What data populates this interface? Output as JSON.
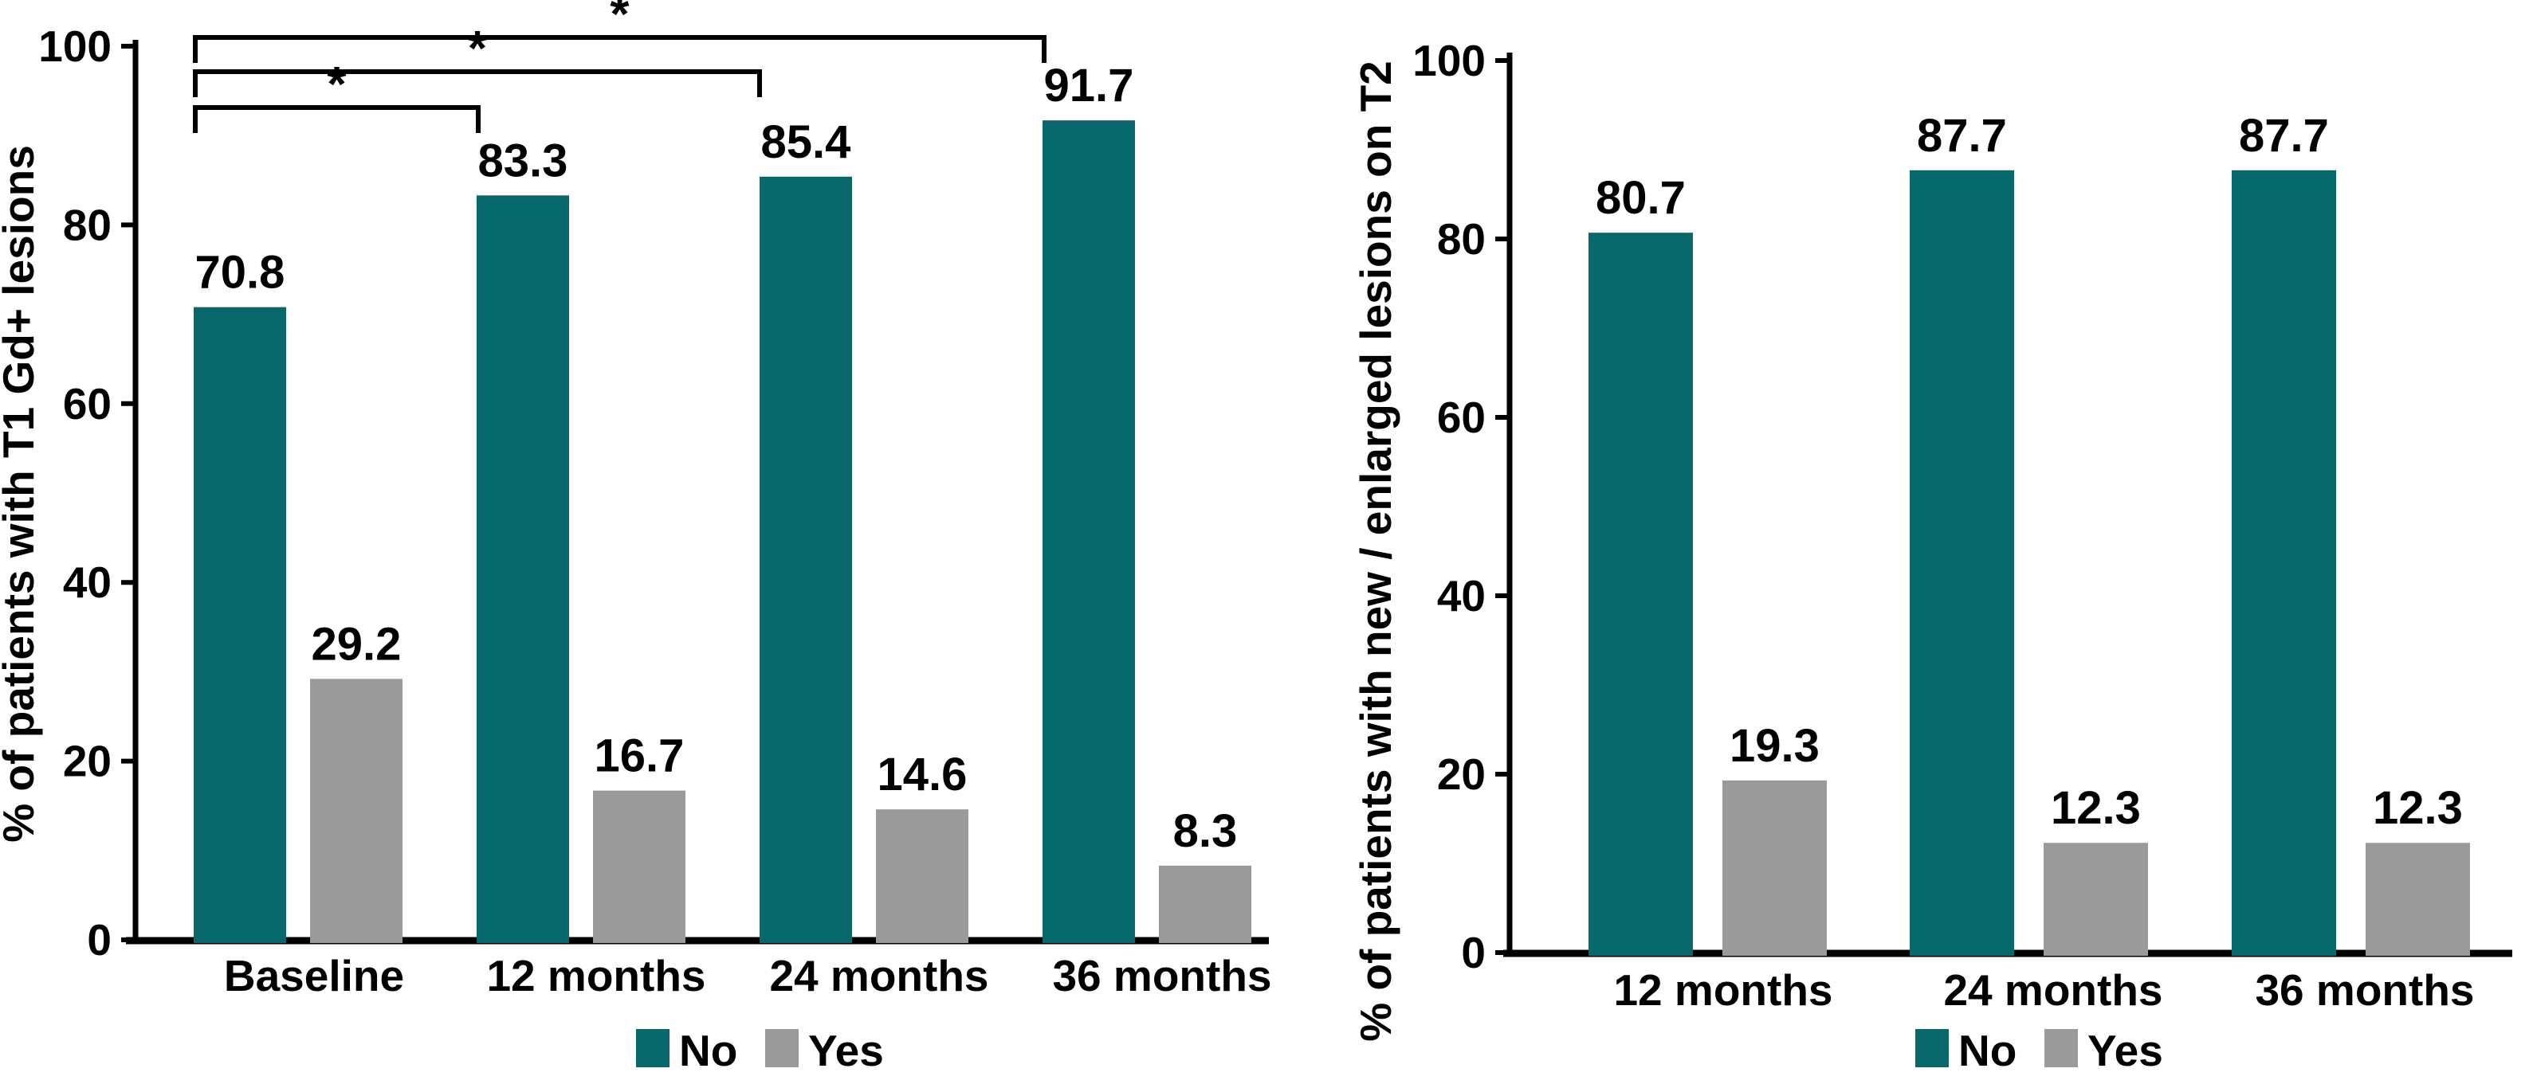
{
  "figure": {
    "background": "#FFFFFF",
    "description": "Two grouped bar charts of MRI lesion outcomes over time"
  },
  "colors": {
    "no": "#06686A",
    "yes": "#9A9A9A",
    "axis": "#000000"
  },
  "chart_data": [
    {
      "id": "t1-gd-lesions",
      "type": "bar",
      "title": "",
      "xlabel": "",
      "ylabel": "% of patients with T1 Gd+ lesions",
      "ylim": [
        0,
        100
      ],
      "yticks": [
        0,
        20,
        40,
        60,
        80,
        100
      ],
      "grid": false,
      "legend_position": "bottom-center",
      "categories": [
        "Baseline",
        "12 months",
        "24 months",
        "36 months"
      ],
      "series": [
        {
          "name": "No",
          "color_key": "no",
          "values": [
            70.8,
            83.3,
            85.4,
            91.7
          ]
        },
        {
          "name": "Yes",
          "color_key": "yes",
          "values": [
            29.2,
            16.7,
            14.6,
            8.3
          ]
        }
      ],
      "significance_brackets": [
        {
          "from": "Baseline",
          "to": "12 months",
          "label": "*"
        },
        {
          "from": "Baseline",
          "to": "24 months",
          "label": "*"
        },
        {
          "from": "Baseline",
          "to": "36 months",
          "label": "*"
        }
      ]
    },
    {
      "id": "t2-new-enlarged-lesions",
      "type": "bar",
      "title": "",
      "xlabel": "",
      "ylabel": "% of patients with new / enlarged lesions on T2",
      "ylim": [
        0,
        100
      ],
      "yticks": [
        0,
        20,
        40,
        60,
        80,
        100
      ],
      "grid": false,
      "legend_position": "bottom-center",
      "categories": [
        "12 months",
        "24 months",
        "36 months"
      ],
      "series": [
        {
          "name": "No",
          "color_key": "no",
          "values": [
            80.7,
            87.7,
            87.7
          ]
        },
        {
          "name": "Yes",
          "color_key": "yes",
          "values": [
            19.3,
            12.3,
            12.3
          ]
        }
      ],
      "significance_brackets": []
    }
  ]
}
